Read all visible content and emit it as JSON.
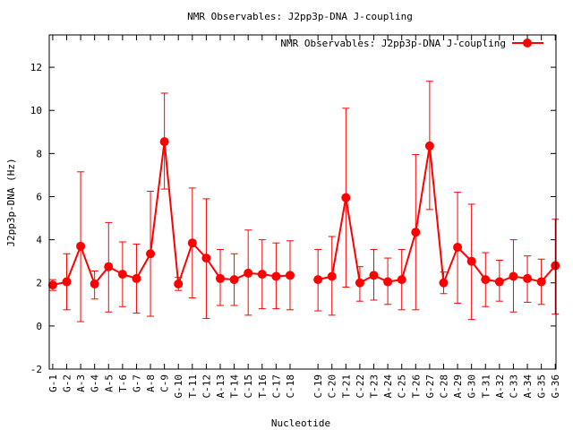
{
  "chart_data": {
    "type": "line",
    "title": "NMR Observables: J2pp3p-DNA J-coupling",
    "xlabel": "Nucleotide",
    "ylabel": "J2pp3p-DNA (Hz)",
    "ylim": [
      -2,
      13.5
    ],
    "yticks": [
      -2,
      0,
      2,
      4,
      6,
      8,
      10,
      12
    ],
    "grid": false,
    "legend_position": "top-right",
    "colors": {
      "series": "#ff0000",
      "axes": "#000000"
    },
    "x_positions": [
      1,
      2,
      3,
      4,
      5,
      6,
      7,
      8,
      9,
      10,
      11,
      12,
      13,
      14,
      15,
      16,
      17,
      18,
      20,
      21,
      22,
      23,
      24,
      25,
      26,
      27,
      28,
      29,
      30,
      31,
      32,
      33,
      34,
      35,
      36,
      37
    ],
    "categories": [
      "G-1",
      "G-2",
      "A-3",
      "G-4",
      "A-5",
      "T-6",
      "G-7",
      "A-8",
      "C-9",
      "G-10",
      "T-11",
      "C-12",
      "A-13",
      "T-14",
      "C-15",
      "T-16",
      "C-17",
      "C-18",
      "C-19",
      "C-20",
      "T-21",
      "C-22",
      "T-23",
      "A-24",
      "C-25",
      "T-26",
      "G-27",
      "C-28",
      "A-29",
      "G-30",
      "T-31",
      "A-32",
      "C-33",
      "A-34",
      "G-35",
      "G-36"
    ],
    "series": [
      {
        "name": "NMR Observables: J2pp3p-DNA J-coupling",
        "values": [
          1.9,
          2.05,
          3.7,
          1.95,
          2.75,
          2.4,
          2.2,
          3.35,
          8.55,
          1.95,
          3.85,
          3.15,
          2.2,
          2.15,
          2.45,
          2.4,
          2.3,
          2.35,
          2.15,
          2.3,
          5.95,
          2.0,
          2.35,
          2.05,
          2.15,
          4.35,
          8.35,
          2.0,
          3.65,
          3.0,
          2.15,
          2.05,
          2.3,
          2.2,
          2.05,
          2.8
        ],
        "err_low": [
          1.65,
          0.75,
          0.2,
          1.25,
          0.65,
          0.9,
          0.6,
          0.45,
          6.35,
          1.65,
          1.3,
          0.35,
          0.95,
          0.95,
          0.5,
          0.8,
          0.8,
          0.75,
          0.7,
          0.5,
          1.8,
          1.15,
          1.2,
          1.0,
          0.75,
          0.75,
          5.4,
          1.5,
          1.05,
          0.3,
          0.9,
          1.15,
          0.65,
          1.1,
          1.0,
          0.55
        ],
        "err_high": [
          2.15,
          3.35,
          7.15,
          2.55,
          4.8,
          3.9,
          3.8,
          6.25,
          10.8,
          2.25,
          6.4,
          5.9,
          3.55,
          3.35,
          4.45,
          4.0,
          3.85,
          3.95,
          3.55,
          4.15,
          10.1,
          2.75,
          3.55,
          3.15,
          3.55,
          7.95,
          11.35,
          2.5,
          6.2,
          5.65,
          3.4,
          3.05,
          4.0,
          3.25,
          3.1,
          4.95
        ]
      }
    ]
  }
}
